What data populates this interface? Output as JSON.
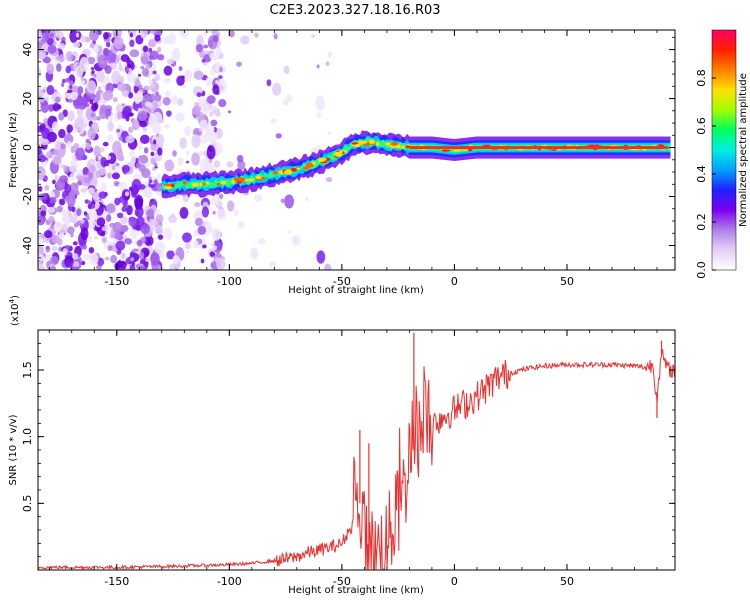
{
  "title": "C2E3.2023.327.18.16.R03",
  "chart_data": [
    {
      "type": "heatmap",
      "xlabel": "Height of straight line (km)",
      "ylabel": "Frequency (Hz)",
      "xlim": [
        -185,
        98
      ],
      "ylim": [
        -50,
        48
      ],
      "xticks": [
        -150,
        -100,
        -50,
        0,
        50
      ],
      "yticks": [
        -40,
        -20,
        0,
        20,
        40
      ],
      "colorbar": {
        "label": "Normalized spectral amplitude",
        "range": [
          0,
          1
        ],
        "ticks": [
          "0.0",
          "0.2",
          "0.4",
          "0.6",
          "0.8"
        ],
        "colors": [
          "#ffffff",
          "#e4d0f6",
          "#b080e8",
          "#7a00f0",
          "#2020ff",
          "#00a0ff",
          "#00f0e0",
          "#00ff60",
          "#a0ff00",
          "#ffe000",
          "#ff8000",
          "#ff2000",
          "#ff0060"
        ]
      },
      "ridge": {
        "x": [
          -130,
          -120,
          -110,
          -100,
          -90,
          -80,
          -70,
          -60,
          -50,
          -45,
          -40,
          -35,
          -30,
          -25,
          -20,
          -10,
          0,
          10,
          20,
          30,
          40,
          50,
          60,
          70,
          80,
          90,
          95
        ],
        "y": [
          -16,
          -15,
          -15,
          -14,
          -13,
          -11,
          -9,
          -6,
          -2,
          1,
          2,
          2,
          1,
          1,
          0,
          0,
          -1,
          0,
          0,
          0,
          0,
          0,
          0,
          0,
          0,
          0,
          0
        ]
      }
    },
    {
      "type": "line",
      "xlabel": "Height of straight line (km)",
      "ylabel": "SNR (10 * v/v)",
      "y_multiplier": "(x10",
      "y_multiplier_exp": "4",
      "y_multiplier_close": ")",
      "xlim": [
        -185,
        98
      ],
      "ylim": [
        0,
        1.8
      ],
      "xticks": [
        -150,
        -100,
        -50,
        0,
        50
      ],
      "yticks": [
        0.5,
        1.0,
        1.5
      ],
      "ytick_labels": [
        "0.5",
        "1.0",
        "1.5"
      ],
      "series": [
        {
          "color": "#e83030",
          "x": [
            -185,
            -150,
            -120,
            -100,
            -90,
            -80,
            -75,
            -70,
            -65,
            -60,
            -55,
            -50,
            -45,
            -42,
            -40,
            -38,
            -35,
            -32,
            -30,
            -28,
            -25,
            -22,
            -20,
            -18,
            -15,
            -12,
            -10,
            -5,
            0,
            5,
            10,
            15,
            20,
            25,
            30,
            35,
            40,
            50,
            60,
            70,
            80,
            85,
            88,
            90,
            92,
            95,
            98
          ],
          "y": [
            0.02,
            0.02,
            0.03,
            0.04,
            0.05,
            0.07,
            0.08,
            0.1,
            0.13,
            0.15,
            0.17,
            0.2,
            0.35,
            0.5,
            0.25,
            0.15,
            0.12,
            0.18,
            0.2,
            0.3,
            0.45,
            0.6,
            0.9,
            1.1,
            1.0,
            1.2,
            1.1,
            1.15,
            1.2,
            1.25,
            1.3,
            1.38,
            1.45,
            1.48,
            1.5,
            1.52,
            1.53,
            1.54,
            1.54,
            1.54,
            1.53,
            1.52,
            1.54,
            1.3,
            1.62,
            1.5,
            1.5
          ]
        }
      ],
      "spikes": [
        {
          "x": -18,
          "y": 1.78
        },
        {
          "x": -42,
          "y": 1.05
        },
        {
          "x": -38,
          "y": 0.95
        },
        {
          "x": 92,
          "y": 1.72
        },
        {
          "x": 90,
          "y": 1.14
        }
      ]
    }
  ]
}
